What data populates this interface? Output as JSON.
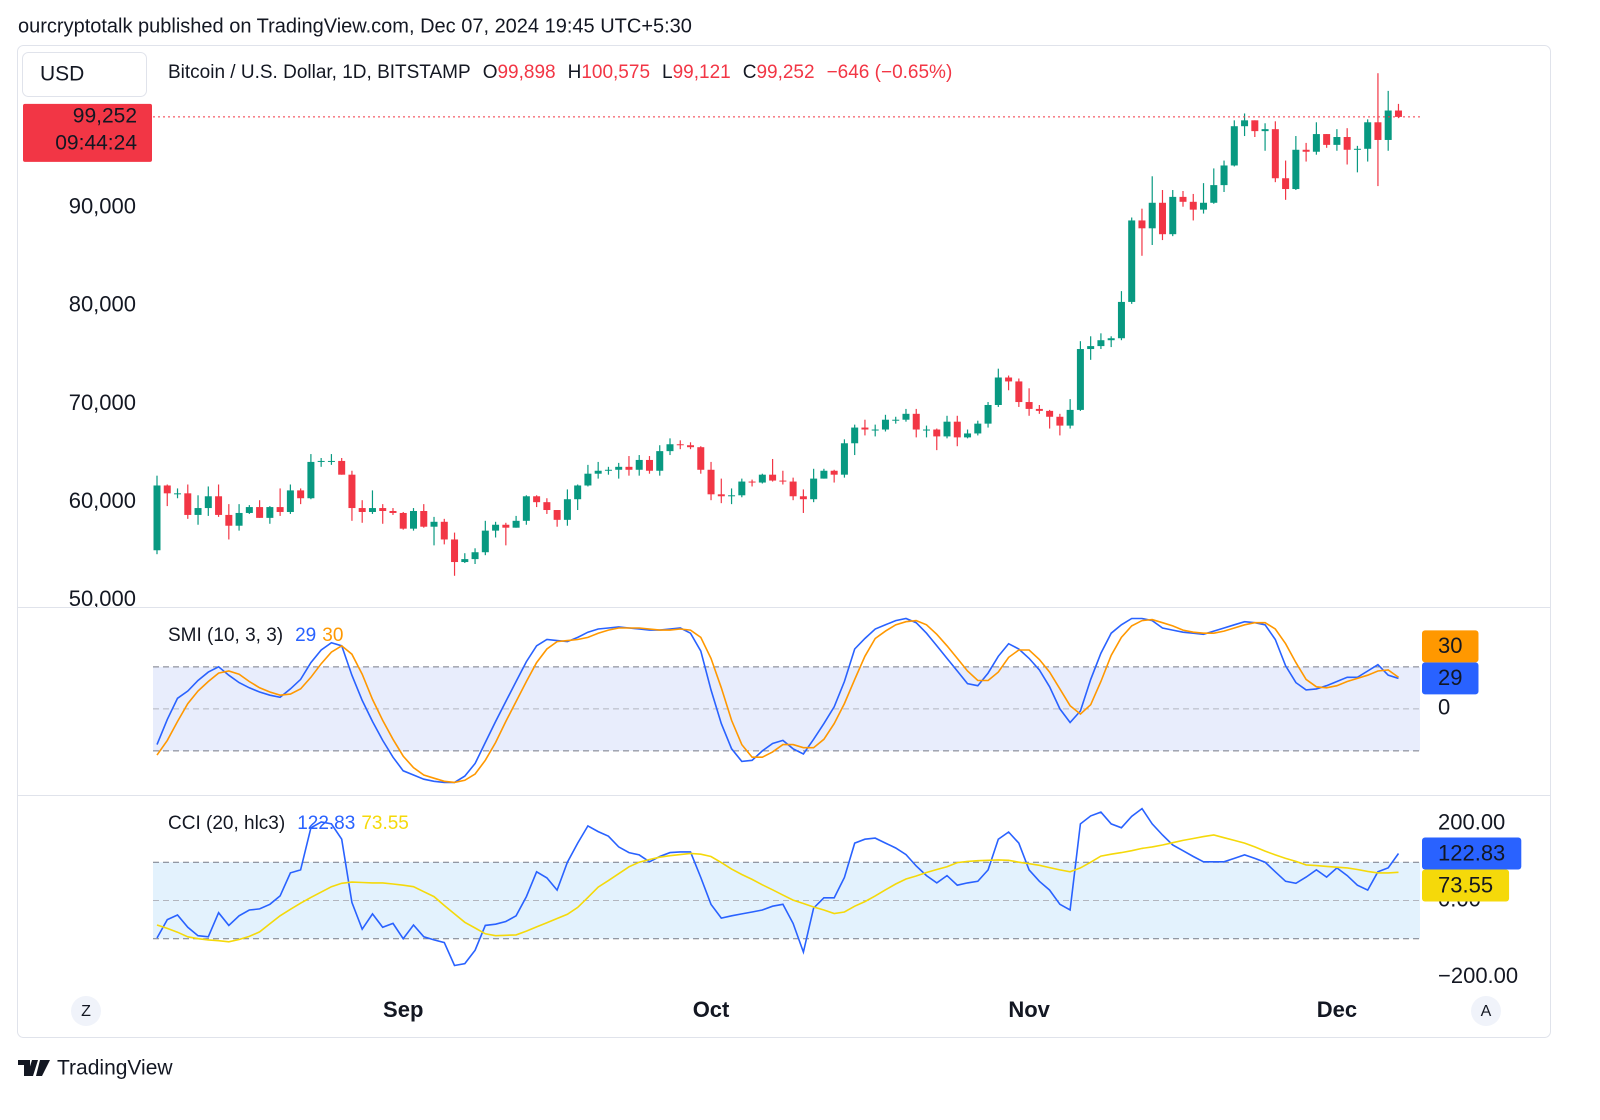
{
  "header": {
    "published": "ourcryptotalk published on TradingView.com, Dec 07, 2024 19:45 UTC+5:30"
  },
  "toolbar": {
    "currency": "USD",
    "left_button": "Z",
    "right_button": "A"
  },
  "footer": {
    "brand": "TradingView"
  },
  "chart_data": [
    {
      "type": "candlestick",
      "title": "Bitcoin / U.S. Dollar, 1D, BITSTAMP",
      "ohlc_legend": {
        "prefixes": [
          "O",
          "H",
          "L",
          "C"
        ],
        "value_labels": [
          "99,898",
          "100,575",
          "99,121",
          "99,252"
        ]
      },
      "change_label": "−646 (−0.65%)",
      "price_line": {
        "value": 99252,
        "label": "99,252"
      },
      "countdown": "09:44:24",
      "up_color": "#089981",
      "down_color": "#f23645",
      "ylim": [
        49320,
        106370
      ],
      "yticks": [
        {
          "value": 50000,
          "label": "50,000"
        },
        {
          "value": 60000,
          "label": "60,000"
        },
        {
          "value": 70000,
          "label": "70,000"
        },
        {
          "value": 80000,
          "label": "80,000"
        },
        {
          "value": 90000,
          "label": "90,000"
        }
      ],
      "grid": false,
      "categories": [
        null,
        null,
        null,
        null,
        null,
        null,
        null,
        null,
        null,
        null,
        null,
        null,
        null,
        null,
        null,
        null,
        null,
        null,
        null,
        null,
        null,
        null,
        null,
        null,
        "Sep",
        null,
        null,
        null,
        null,
        null,
        null,
        null,
        null,
        null,
        null,
        null,
        null,
        null,
        null,
        null,
        null,
        null,
        null,
        null,
        null,
        null,
        null,
        null,
        null,
        null,
        null,
        null,
        null,
        null,
        "Oct",
        null,
        null,
        null,
        null,
        null,
        null,
        null,
        null,
        null,
        null,
        null,
        null,
        null,
        null,
        null,
        null,
        null,
        null,
        null,
        null,
        null,
        null,
        null,
        null,
        null,
        null,
        null,
        null,
        null,
        null,
        "Nov",
        null,
        null,
        null,
        null,
        null,
        null,
        null,
        null,
        null,
        null,
        null,
        null,
        null,
        null,
        null,
        null,
        null,
        null,
        null,
        null,
        null,
        null,
        null,
        null,
        null,
        null,
        null,
        null,
        null,
        "Dec",
        null,
        null,
        null,
        null,
        null,
        null
      ],
      "open": [
        55100,
        61700,
        60900,
        60900,
        58700,
        59400,
        60600,
        58700,
        57600,
        58900,
        59500,
        58400,
        59500,
        59000,
        61200,
        60400,
        64100,
        64200,
        64200,
        62800,
        59400,
        59000,
        59400,
        59100,
        58900,
        57300,
        59100,
        57500,
        58000,
        56200,
        53900,
        54200,
        54900,
        57100,
        57700,
        57400,
        58100,
        60600,
        60000,
        59200,
        58200,
        60300,
        61700,
        62900,
        63200,
        63300,
        63600,
        63300,
        64300,
        63200,
        65200,
        65900,
        65800,
        65600,
        63300,
        60800,
        60600,
        60700,
        62100,
        62000,
        62800,
        62200,
        62100,
        60600,
        60300,
        62400,
        63200,
        62800,
        66000,
        67600,
        67400,
        67400,
        68400,
        68400,
        69000,
        67400,
        67400,
        66700,
        68200,
        66600,
        67000,
        68000,
        69900,
        72700,
        72300,
        70200,
        69500,
        69300,
        68700,
        67800,
        69400,
        75600,
        75900,
        76500,
        76700,
        80400,
        88700,
        87900,
        90500,
        87300,
        91100,
        90600,
        89800,
        90500,
        92300,
        94300,
        98300,
        98900,
        97800,
        98000,
        93000,
        91900,
        95900,
        95700,
        97500,
        96400,
        97200,
        95900,
        96000,
        98700,
        96900,
        99898
      ],
      "high": [
        62700,
        61800,
        61400,
        61800,
        60700,
        61600,
        61800,
        59800,
        59800,
        59700,
        60200,
        59600,
        61400,
        61800,
        61400,
        64900,
        64500,
        64900,
        64500,
        63200,
        60200,
        61200,
        59800,
        59400,
        59000,
        59400,
        59800,
        58500,
        58300,
        56900,
        54800,
        55300,
        58100,
        58000,
        57900,
        58600,
        60700,
        60700,
        60400,
        59200,
        61300,
        61800,
        63800,
        64100,
        63600,
        64000,
        64700,
        64800,
        64700,
        65800,
        66500,
        66300,
        66100,
        65700,
        64100,
        62400,
        61400,
        62400,
        62300,
        62900,
        64400,
        63200,
        62500,
        61300,
        63400,
        63400,
        63300,
        66400,
        67900,
        68400,
        67900,
        68900,
        68700,
        69500,
        69500,
        67800,
        67500,
        68800,
        68800,
        67400,
        68300,
        70200,
        73600,
        72900,
        72600,
        71600,
        69900,
        69400,
        69000,
        70500,
        76400,
        76900,
        77200,
        76900,
        81500,
        89000,
        89900,
        93200,
        91800,
        91800,
        91700,
        91400,
        92500,
        94000,
        94800,
        98900,
        99600,
        98900,
        98600,
        98800,
        94800,
        97300,
        96600,
        98700,
        97500,
        98000,
        98100,
        96300,
        99000,
        103700,
        101900,
        100575
      ],
      "low": [
        54700,
        59600,
        60400,
        58300,
        57700,
        58600,
        58500,
        56200,
        57100,
        58800,
        58400,
        57800,
        58600,
        58800,
        59800,
        60300,
        63600,
        63800,
        62800,
        58100,
        57900,
        58800,
        57800,
        58700,
        57200,
        57100,
        57400,
        55600,
        55700,
        52500,
        53800,
        53700,
        54600,
        56400,
        55600,
        57400,
        57700,
        59500,
        58800,
        57500,
        57600,
        59200,
        61600,
        62400,
        62800,
        62400,
        62700,
        62700,
        62900,
        62700,
        64800,
        65400,
        65400,
        62900,
        60200,
        59900,
        59800,
        60500,
        61600,
        61900,
        62100,
        61800,
        60200,
        58900,
        60000,
        62400,
        62000,
        62500,
        64800,
        66800,
        66700,
        67200,
        68000,
        68200,
        66600,
        66600,
        65300,
        66500,
        65700,
        66500,
        66800,
        67600,
        69700,
        71400,
        69700,
        68800,
        69000,
        67500,
        66800,
        67500,
        69300,
        74500,
        75600,
        75800,
        76500,
        80200,
        85100,
        86200,
        86700,
        87100,
        90100,
        88700,
        89400,
        90400,
        91600,
        94200,
        97300,
        97200,
        95800,
        92600,
        90800,
        91800,
        94700,
        95400,
        96100,
        95800,
        94400,
        93600,
        94700,
        92200,
        95800,
        99121
      ],
      "close": [
        61700,
        60900,
        60900,
        58700,
        59400,
        60600,
        58700,
        57600,
        58900,
        59500,
        58400,
        59500,
        59000,
        61200,
        60400,
        64100,
        64200,
        64200,
        62800,
        59400,
        59000,
        59400,
        59100,
        58900,
        57300,
        59100,
        57500,
        58000,
        56200,
        53900,
        54200,
        54900,
        57100,
        57700,
        57400,
        58100,
        60600,
        60000,
        59200,
        58200,
        60300,
        61700,
        62900,
        63200,
        63300,
        63600,
        63300,
        64300,
        63200,
        65200,
        65900,
        65800,
        65600,
        63300,
        60800,
        60600,
        60700,
        62100,
        62000,
        62800,
        62200,
        62100,
        60600,
        60300,
        62400,
        63200,
        62800,
        66000,
        67600,
        67400,
        67400,
        68400,
        68400,
        69000,
        67400,
        67400,
        66700,
        68200,
        66600,
        67000,
        68000,
        69900,
        72700,
        72300,
        70200,
        69500,
        69300,
        68700,
        67800,
        69400,
        75600,
        75900,
        76500,
        76700,
        80400,
        88700,
        87900,
        90500,
        87300,
        91100,
        90600,
        89800,
        90500,
        92300,
        94300,
        98300,
        98900,
        97800,
        98000,
        93000,
        91900,
        95900,
        95700,
        97500,
        96400,
        97200,
        95900,
        96000,
        98700,
        96900,
        99898,
        99252
      ]
    },
    {
      "type": "line",
      "title": "SMI (10, 3, 3)",
      "ylim": [
        -82,
        96
      ],
      "yticks": [
        0
      ],
      "levels": [
        40,
        0,
        -40
      ],
      "band_color": "#e8edfc",
      "series": [
        {
          "color": "#2962ff",
          "values": [
            -34,
            -10,
            10,
            17,
            27,
            35,
            40,
            32,
            25,
            20,
            16,
            13,
            11,
            19,
            28,
            44,
            56,
            63,
            60,
            32,
            8,
            -12,
            -30,
            -46,
            -59,
            -63,
            -67,
            -69,
            -70,
            -70,
            -64,
            -52,
            -32,
            -12,
            7,
            26,
            45,
            60,
            66,
            65,
            64,
            68,
            73,
            76,
            77,
            78,
            77,
            76,
            75,
            75,
            76,
            77,
            72,
            55,
            18,
            -14,
            -38,
            -50,
            -49,
            -40,
            -33,
            -30,
            -38,
            -43,
            -29,
            -14,
            2,
            26,
            57,
            67,
            76,
            80,
            84,
            86,
            82,
            72,
            60,
            48,
            36,
            24,
            22,
            34,
            50,
            62,
            57,
            48,
            37,
            21,
            0,
            -13,
            -2,
            28,
            53,
            72,
            80,
            86,
            86,
            84,
            77,
            75,
            73,
            72,
            71,
            74,
            77,
            80,
            83,
            82,
            80,
            66,
            41,
            25,
            18,
            19,
            22,
            26,
            30,
            30,
            36,
            42,
            32,
            29
          ]
        },
        {
          "color": "#ff9800",
          "values": [
            -44,
            -30,
            -12,
            5,
            17,
            26,
            34,
            36,
            33,
            26,
            20,
            16,
            13,
            14,
            19,
            30,
            43,
            54,
            60,
            52,
            33,
            9,
            -11,
            -29,
            -45,
            -56,
            -63,
            -66,
            -69,
            -70,
            -68,
            -62,
            -49,
            -32,
            -12,
            7,
            26,
            44,
            57,
            64,
            65,
            66,
            68,
            72,
            75,
            77,
            77,
            77,
            76,
            75,
            75,
            76,
            75,
            68,
            48,
            20,
            -11,
            -34,
            -46,
            -46,
            -41,
            -34,
            -34,
            -37,
            -37,
            -29,
            -14,
            5,
            28,
            50,
            67,
            74,
            80,
            83,
            84,
            80,
            71,
            60,
            48,
            36,
            27,
            27,
            35,
            49,
            56,
            56,
            47,
            35,
            19,
            3,
            -5,
            4,
            26,
            51,
            68,
            79,
            84,
            85,
            82,
            79,
            75,
            73,
            72,
            72,
            74,
            77,
            80,
            82,
            82,
            76,
            62,
            44,
            28,
            21,
            20,
            22,
            26,
            29,
            32,
            36,
            37,
            30
          ]
        }
      ]
    },
    {
      "type": "line",
      "title": "CCI (20, hlc3)",
      "ylim": [
        -247,
        273
      ],
      "yticks": [
        {
          "value": 200,
          "label": "200.00"
        },
        {
          "value": 0,
          "label": "0.00"
        },
        {
          "value": -200,
          "label": "−200.00"
        }
      ],
      "levels": [
        100,
        0,
        -100
      ],
      "band_color": "#e3f2fd",
      "series": [
        {
          "color": "#2962ff",
          "values": [
            -98,
            -50,
            -38,
            -70,
            -92,
            -95,
            -32,
            -65,
            -40,
            -25,
            -22,
            -10,
            12,
            72,
            80,
            190,
            205,
            200,
            160,
            -5,
            -75,
            -35,
            -70,
            -60,
            -100,
            -64,
            -95,
            -103,
            -110,
            -170,
            -165,
            -130,
            -65,
            -62,
            -55,
            -40,
            10,
            75,
            59,
            27,
            100,
            150,
            195,
            180,
            168,
            140,
            125,
            119,
            101,
            115,
            125,
            127,
            127,
            60,
            -10,
            -46,
            -40,
            -35,
            -30,
            -25,
            -15,
            -10,
            -60,
            -135,
            -20,
            7,
            7,
            60,
            150,
            160,
            163,
            150,
            137,
            120,
            90,
            65,
            46,
            65,
            40,
            46,
            50,
            80,
            160,
            179,
            150,
            80,
            50,
            27,
            -10,
            -25,
            200,
            221,
            231,
            200,
            190,
            220,
            240,
            200,
            171,
            145,
            130,
            115,
            101,
            101,
            101,
            110,
            119,
            110,
            100,
            75,
            50,
            45,
            61,
            80,
            61,
            85,
            65,
            40,
            27,
            75,
            85,
            122.83
          ]
        },
        {
          "color": "#f5d90a",
          "values": [
            -64,
            -73,
            -83,
            -95,
            -100,
            -103,
            -105,
            -108,
            -102,
            -94,
            -82,
            -61,
            -40,
            -23,
            -7,
            8,
            22,
            36,
            45,
            48,
            47,
            46,
            46,
            43,
            40,
            36,
            23,
            10,
            -13,
            -35,
            -57,
            -72,
            -87,
            -92,
            -91,
            -90,
            -80,
            -69,
            -58,
            -47,
            -36,
            -18,
            8,
            35,
            52,
            70,
            88,
            100,
            107,
            113,
            117,
            120,
            123,
            121,
            115,
            99,
            82,
            68,
            55,
            41,
            28,
            14,
            1,
            -8,
            -17,
            -25,
            -34,
            -30,
            -15,
            -3,
            12,
            28,
            43,
            56,
            64,
            73,
            81,
            88,
            99,
            102,
            104,
            105,
            106,
            105,
            100,
            96,
            92,
            86,
            80,
            75,
            85,
            100,
            116,
            121,
            125,
            130,
            136,
            140,
            145,
            151,
            157,
            162,
            167,
            171,
            164,
            157,
            150,
            140,
            129,
            119,
            110,
            102,
            93,
            91,
            89,
            87,
            85,
            81,
            76,
            72,
            72,
            73.55
          ]
        }
      ]
    }
  ]
}
